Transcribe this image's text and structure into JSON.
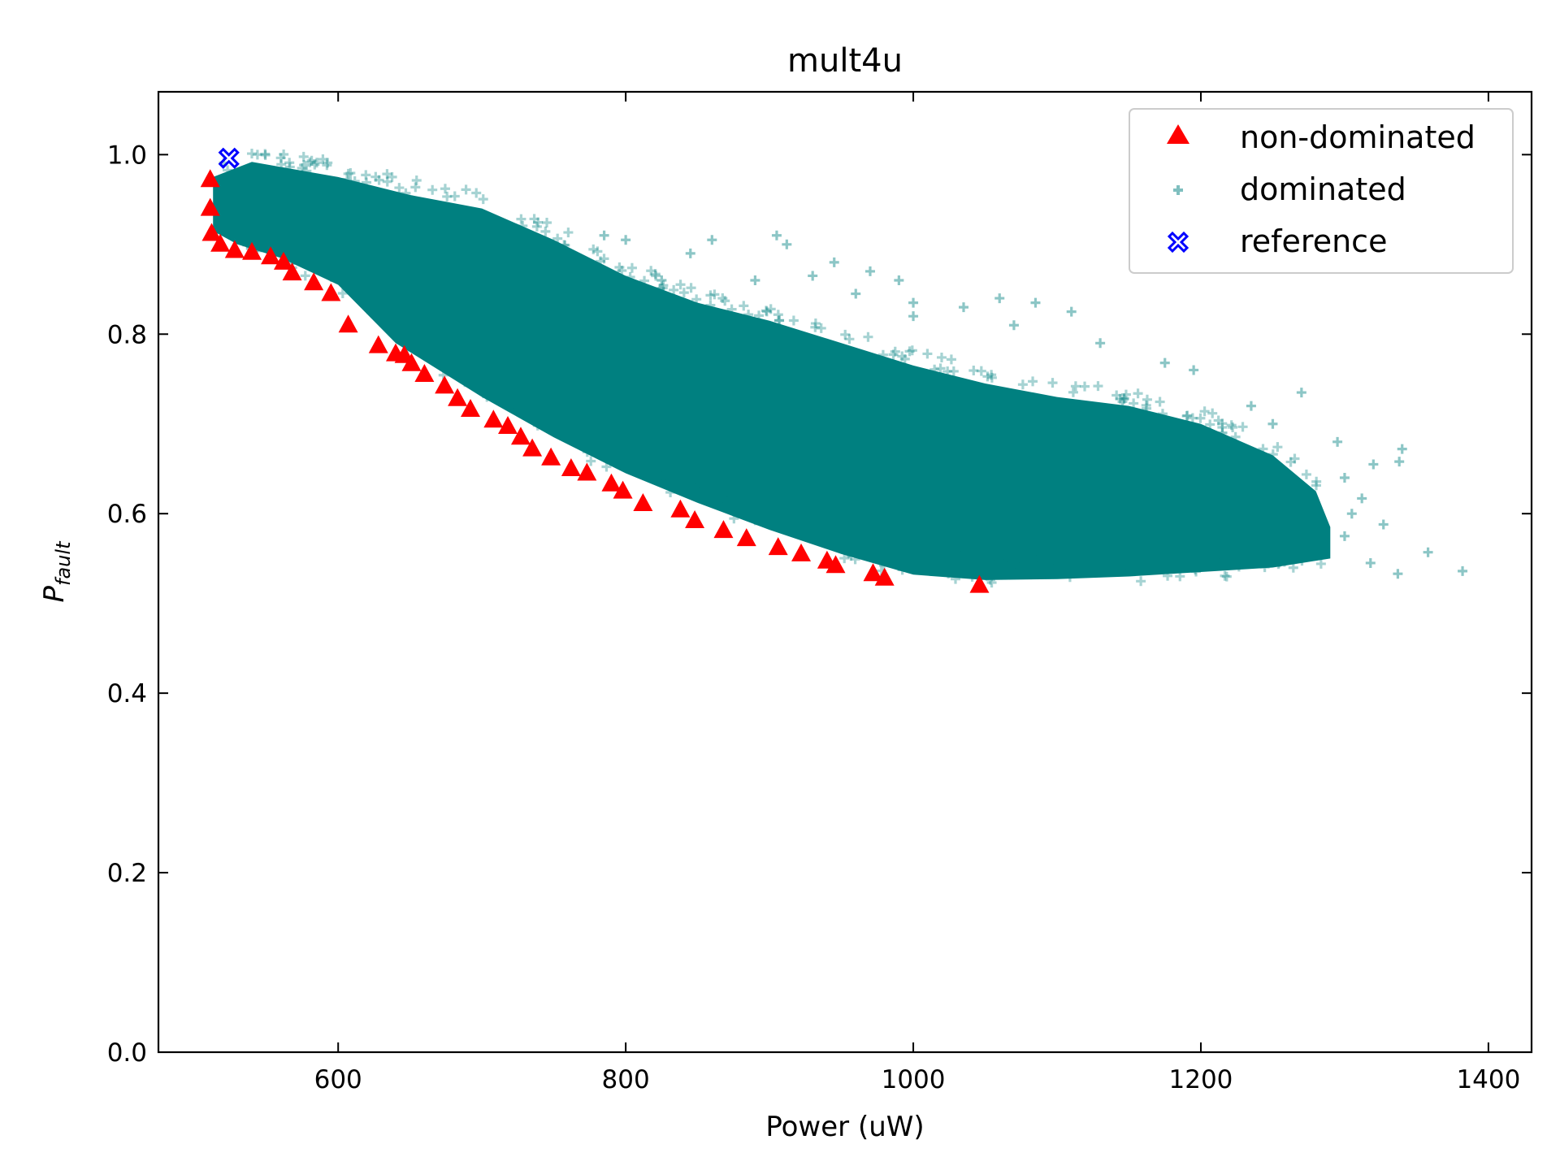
{
  "chart_data": {
    "type": "scatter",
    "title": "mult4u",
    "xlabel": "Power (uW)",
    "ylabel_main": "P",
    "ylabel_sub": "fault",
    "xlim": [
      475,
      1430
    ],
    "ylim": [
      0.0,
      1.07
    ],
    "xticks": [
      600,
      800,
      1000,
      1200,
      1400
    ],
    "yticks": [
      0.0,
      0.2,
      0.4,
      0.6,
      0.8,
      1.0
    ],
    "xtick_labels": [
      "600",
      "800",
      "1000",
      "1200",
      "1400"
    ],
    "ytick_labels": [
      "0.0",
      "0.2",
      "0.4",
      "0.6",
      "0.8",
      "1.0"
    ],
    "grid": false,
    "legend_position": "top-right",
    "colors": {
      "non_dominated": "#ff0000",
      "dominated": "#008080",
      "reference": "#0000ff"
    },
    "series": [
      {
        "name": "non-dominated",
        "marker": "triangle",
        "points": [
          [
            511,
            0.972
          ],
          [
            511,
            0.94
          ],
          [
            512,
            0.912
          ],
          [
            518,
            0.9
          ],
          [
            528,
            0.893
          ],
          [
            540,
            0.891
          ],
          [
            553,
            0.886
          ],
          [
            562,
            0.88
          ],
          [
            568,
            0.868
          ],
          [
            583,
            0.857
          ],
          [
            595,
            0.845
          ],
          [
            607,
            0.81
          ],
          [
            628,
            0.787
          ],
          [
            640,
            0.778
          ],
          [
            646,
            0.776
          ],
          [
            651,
            0.767
          ],
          [
            660,
            0.755
          ],
          [
            674,
            0.742
          ],
          [
            683,
            0.728
          ],
          [
            692,
            0.716
          ],
          [
            708,
            0.704
          ],
          [
            718,
            0.697
          ],
          [
            727,
            0.685
          ],
          [
            735,
            0.672
          ],
          [
            748,
            0.662
          ],
          [
            762,
            0.65
          ],
          [
            773,
            0.645
          ],
          [
            790,
            0.633
          ],
          [
            798,
            0.625
          ],
          [
            812,
            0.611
          ],
          [
            838,
            0.604
          ],
          [
            848,
            0.592
          ],
          [
            868,
            0.581
          ],
          [
            884,
            0.572
          ],
          [
            906,
            0.562
          ],
          [
            922,
            0.555
          ],
          [
            940,
            0.547
          ],
          [
            946,
            0.542
          ],
          [
            972,
            0.533
          ],
          [
            980,
            0.528
          ],
          [
            1046,
            0.52
          ]
        ]
      },
      {
        "name": "dominated",
        "marker": "plus",
        "band": {
          "upper": [
            [
              513,
              0.975
            ],
            [
              540,
              0.992
            ],
            [
              600,
              0.975
            ],
            [
              650,
              0.955
            ],
            [
              700,
              0.94
            ],
            [
              750,
              0.905
            ],
            [
              800,
              0.865
            ],
            [
              850,
              0.835
            ],
            [
              900,
              0.815
            ],
            [
              950,
              0.79
            ],
            [
              1000,
              0.765
            ],
            [
              1050,
              0.745
            ],
            [
              1100,
              0.73
            ],
            [
              1150,
              0.72
            ],
            [
              1200,
              0.7
            ],
            [
              1250,
              0.665
            ],
            [
              1280,
              0.625
            ],
            [
              1290,
              0.585
            ]
          ],
          "lower": [
            [
              513,
              0.915
            ],
            [
              530,
              0.9
            ],
            [
              560,
              0.885
            ],
            [
              600,
              0.855
            ],
            [
              640,
              0.79
            ],
            [
              700,
              0.73
            ],
            [
              750,
              0.685
            ],
            [
              800,
              0.645
            ],
            [
              850,
              0.612
            ],
            [
              900,
              0.582
            ],
            [
              950,
              0.555
            ],
            [
              1000,
              0.532
            ],
            [
              1050,
              0.526
            ],
            [
              1100,
              0.527
            ],
            [
              1150,
              0.53
            ],
            [
              1200,
              0.535
            ],
            [
              1250,
              0.54
            ],
            [
              1290,
              0.55
            ]
          ]
        },
        "outliers": [
          [
            1382,
            0.536
          ],
          [
            1358,
            0.557
          ],
          [
            1337,
            0.533
          ],
          [
            1340,
            0.672
          ],
          [
            1338,
            0.658
          ],
          [
            1320,
            0.655
          ],
          [
            1318,
            0.545
          ],
          [
            1305,
            0.6
          ],
          [
            1300,
            0.64
          ],
          [
            1312,
            0.617
          ],
          [
            1270,
            0.735
          ],
          [
            1295,
            0.68
          ],
          [
            1250,
            0.7
          ],
          [
            1235,
            0.72
          ],
          [
            1215,
            0.69
          ],
          [
            1300,
            0.575
          ],
          [
            1327,
            0.588
          ],
          [
            1110,
            0.825
          ],
          [
            1085,
            0.835
          ],
          [
            1060,
            0.84
          ],
          [
            1035,
            0.83
          ],
          [
            1000,
            0.835
          ],
          [
            990,
            0.86
          ],
          [
            960,
            0.845
          ],
          [
            970,
            0.87
          ],
          [
            905,
            0.91
          ],
          [
            912,
            0.9
          ],
          [
            860,
            0.905
          ],
          [
            845,
            0.89
          ],
          [
            825,
            0.86
          ],
          [
            800,
            0.905
          ],
          [
            785,
            0.91
          ],
          [
            750,
            0.89
          ],
          [
            772,
            0.855
          ],
          [
            890,
            0.86
          ],
          [
            930,
            0.865
          ],
          [
            945,
            0.88
          ],
          [
            1000,
            0.82
          ],
          [
            1070,
            0.81
          ],
          [
            1130,
            0.79
          ],
          [
            1175,
            0.768
          ],
          [
            1195,
            0.76
          ]
        ]
      },
      {
        "name": "reference",
        "marker": "x-filled",
        "points": [
          [
            524,
            0.996
          ]
        ]
      }
    ]
  }
}
